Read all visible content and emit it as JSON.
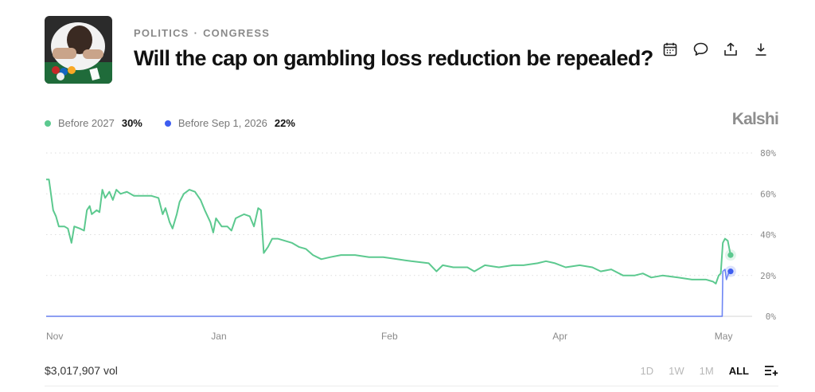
{
  "header": {
    "breadcrumb": [
      "POLITICS",
      "CONGRESS"
    ],
    "breadcrumb_separator": "·",
    "title": "Will the cap on gambling loss reduction be repealed?",
    "thumbnail_icon": "poker-table-photo",
    "actions": [
      {
        "name": "calendar-icon"
      },
      {
        "name": "comment-icon"
      },
      {
        "name": "share-icon"
      },
      {
        "name": "download-icon"
      }
    ]
  },
  "brand": "Kalshi",
  "legend": [
    {
      "name": "Before 2027",
      "value": "30%",
      "color": "#5cc98f"
    },
    {
      "name": "Before Sep 1, 2026",
      "value": "22%",
      "color": "#3d5df0"
    }
  ],
  "footer": {
    "volume": "$3,017,907 vol",
    "ranges": [
      "1D",
      "1W",
      "1M",
      "ALL"
    ],
    "active_range": "ALL",
    "settings_icon": "list-plus-icon"
  },
  "chart_data": {
    "type": "line",
    "x_axis": {
      "labels": [
        "Nov",
        "Jan",
        "Feb",
        "Apr",
        "May"
      ],
      "positions": [
        0,
        0.246,
        0.489,
        0.732,
        0.965
      ]
    },
    "y_axis": {
      "ticks": [
        0,
        20,
        40,
        60,
        80
      ],
      "tick_labels": [
        "0%",
        "20%",
        "40%",
        "60%",
        "80%"
      ],
      "range": [
        0,
        80
      ]
    },
    "grid": true,
    "series": [
      {
        "name": "Before 2027",
        "color": "#5cc98f",
        "last_value": 30,
        "points": [
          [
            0,
            67
          ],
          [
            0.004,
            67
          ],
          [
            0.006,
            62
          ],
          [
            0.01,
            52
          ],
          [
            0.014,
            49
          ],
          [
            0.018,
            44
          ],
          [
            0.026,
            44
          ],
          [
            0.031,
            43
          ],
          [
            0.036,
            36
          ],
          [
            0.04,
            44
          ],
          [
            0.048,
            43
          ],
          [
            0.054,
            42
          ],
          [
            0.058,
            52
          ],
          [
            0.062,
            54
          ],
          [
            0.065,
            50
          ],
          [
            0.072,
            52
          ],
          [
            0.076,
            51
          ],
          [
            0.08,
            62
          ],
          [
            0.084,
            58
          ],
          [
            0.09,
            61
          ],
          [
            0.095,
            57
          ],
          [
            0.1,
            62
          ],
          [
            0.106,
            60
          ],
          [
            0.115,
            61
          ],
          [
            0.125,
            59
          ],
          [
            0.14,
            59
          ],
          [
            0.15,
            59
          ],
          [
            0.16,
            58
          ],
          [
            0.166,
            50
          ],
          [
            0.17,
            53
          ],
          [
            0.176,
            46
          ],
          [
            0.18,
            43
          ],
          [
            0.186,
            50
          ],
          [
            0.19,
            56
          ],
          [
            0.196,
            60
          ],
          [
            0.204,
            62
          ],
          [
            0.212,
            61
          ],
          [
            0.22,
            57
          ],
          [
            0.226,
            52
          ],
          [
            0.234,
            46
          ],
          [
            0.238,
            41
          ],
          [
            0.242,
            48
          ],
          [
            0.25,
            44
          ],
          [
            0.258,
            44
          ],
          [
            0.264,
            42
          ],
          [
            0.27,
            48
          ],
          [
            0.276,
            49
          ],
          [
            0.282,
            50
          ],
          [
            0.29,
            49
          ],
          [
            0.296,
            44
          ],
          [
            0.302,
            53
          ],
          [
            0.306,
            52
          ],
          [
            0.31,
            31
          ],
          [
            0.316,
            34
          ],
          [
            0.322,
            38
          ],
          [
            0.33,
            38
          ],
          [
            0.34,
            37
          ],
          [
            0.35,
            36
          ],
          [
            0.36,
            34
          ],
          [
            0.37,
            33
          ],
          [
            0.38,
            30
          ],
          [
            0.392,
            28
          ],
          [
            0.405,
            29
          ],
          [
            0.42,
            30
          ],
          [
            0.44,
            30
          ],
          [
            0.46,
            29
          ],
          [
            0.48,
            29
          ],
          [
            0.5,
            28
          ],
          [
            0.52,
            27
          ],
          [
            0.545,
            26
          ],
          [
            0.556,
            22
          ],
          [
            0.565,
            25
          ],
          [
            0.58,
            24
          ],
          [
            0.6,
            24
          ],
          [
            0.61,
            22
          ],
          [
            0.625,
            25
          ],
          [
            0.645,
            24
          ],
          [
            0.665,
            25
          ],
          [
            0.68,
            25
          ],
          [
            0.7,
            26
          ],
          [
            0.712,
            27
          ],
          [
            0.725,
            26
          ],
          [
            0.74,
            24
          ],
          [
            0.76,
            25
          ],
          [
            0.778,
            24
          ],
          [
            0.79,
            22
          ],
          [
            0.805,
            23
          ],
          [
            0.822,
            20
          ],
          [
            0.838,
            20
          ],
          [
            0.85,
            21
          ],
          [
            0.862,
            19
          ],
          [
            0.878,
            20
          ],
          [
            0.9,
            19
          ],
          [
            0.92,
            18
          ],
          [
            0.94,
            18
          ],
          [
            0.95,
            17
          ],
          [
            0.954,
            16
          ],
          [
            0.958,
            20
          ],
          [
            0.961,
            21
          ],
          [
            0.964,
            36
          ],
          [
            0.967,
            38
          ],
          [
            0.971,
            37
          ],
          [
            0.975,
            30
          ]
        ]
      },
      {
        "name": "Before Sep 1, 2026",
        "color": "#3d5df0",
        "last_value": 22,
        "points": [
          [
            0,
            0
          ],
          [
            0.963,
            0
          ],
          [
            0.964,
            22
          ],
          [
            0.967,
            23
          ],
          [
            0.969,
            18
          ],
          [
            0.972,
            21
          ],
          [
            0.975,
            22
          ]
        ]
      }
    ]
  }
}
